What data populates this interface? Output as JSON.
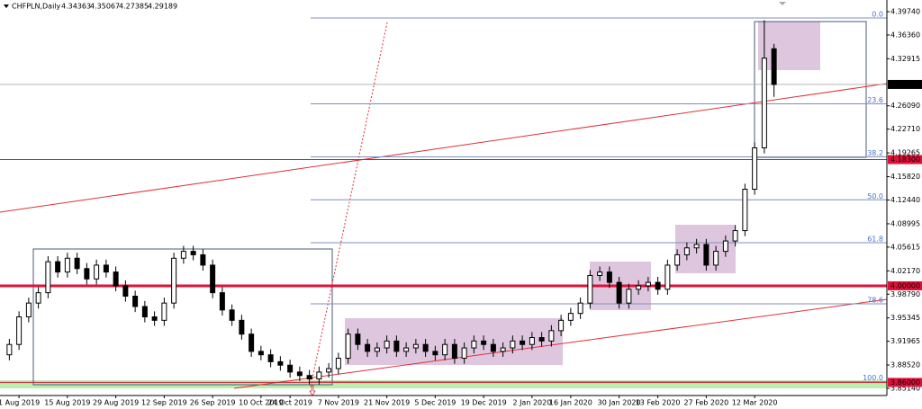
{
  "chart_data": {
    "type": "candlestick",
    "symbol": "CHFPLN,Daily",
    "categories": [
      null,
      "1 Aug 2019",
      null,
      null,
      null,
      null,
      "15 Aug 2019",
      null,
      null,
      null,
      null,
      "29 Aug 2019",
      null,
      null,
      null,
      null,
      "12 Sep 2019",
      null,
      null,
      null,
      null,
      "26 Sep 2019",
      null,
      null,
      null,
      null,
      "10 Oct 2019",
      null,
      null,
      "24 Oct 2019",
      null,
      null,
      null,
      null,
      "7 Nov 2019",
      null,
      null,
      null,
      null,
      "21 Nov 2019",
      null,
      null,
      null,
      null,
      "5 Dec 2019",
      null,
      null,
      null,
      null,
      "19 Dec 2019",
      null,
      null,
      null,
      null,
      "2 Jan 2020",
      null,
      null,
      null,
      "16 Jan 2020",
      null,
      null,
      null,
      null,
      "30 Jan 2020",
      null,
      null,
      null,
      "13 Feb 2020",
      null,
      null,
      null,
      null,
      "27 Feb 2020",
      null,
      null,
      null,
      null,
      "12 Mar 2020",
      null,
      null
    ],
    "open": [
      3.9,
      3.915,
      3.955,
      3.975,
      3.99,
      4.035,
      4.02,
      4.04,
      4.025,
      4.01,
      4.03,
      4.02,
      4.0,
      3.985,
      3.97,
      3.955,
      3.95,
      3.975,
      4.04,
      4.05,
      4.045,
      4.03,
      3.99,
      3.965,
      3.95,
      3.93,
      3.905,
      3.9,
      3.89,
      3.885,
      3.875,
      3.87,
      3.865,
      3.875,
      3.88,
      3.895,
      3.93,
      3.915,
      3.905,
      3.91,
      3.92,
      3.905,
      3.91,
      3.915,
      3.905,
      3.9,
      3.915,
      3.895,
      3.91,
      3.92,
      3.915,
      3.905,
      3.91,
      3.92,
      3.915,
      3.925,
      3.92,
      3.935,
      3.95,
      3.96,
      3.975,
      4.015,
      4.02,
      4.005,
      3.975,
      3.995,
      4.0,
      4.005,
      3.995,
      4.03,
      4.045,
      4.055,
      4.06,
      4.03,
      4.05,
      4.065,
      4.08,
      4.14,
      4.2,
      4.34363
    ],
    "high": [
      3.923,
      3.963,
      3.983,
      3.998,
      4.043,
      4.043,
      4.048,
      4.048,
      4.033,
      4.038,
      4.038,
      4.028,
      4.008,
      3.993,
      3.978,
      3.963,
      3.983,
      4.048,
      4.058,
      4.058,
      4.053,
      4.038,
      3.998,
      3.973,
      3.958,
      3.938,
      3.913,
      3.908,
      3.898,
      3.893,
      3.883,
      3.878,
      3.883,
      3.888,
      3.903,
      3.938,
      3.938,
      3.923,
      3.918,
      3.928,
      3.928,
      3.918,
      3.923,
      3.923,
      3.913,
      3.923,
      3.923,
      3.918,
      3.928,
      3.928,
      3.923,
      3.918,
      3.928,
      3.928,
      3.933,
      3.933,
      3.943,
      3.958,
      3.968,
      3.983,
      4.023,
      4.028,
      4.028,
      4.013,
      4.003,
      4.008,
      4.013,
      4.013,
      4.038,
      4.053,
      4.063,
      4.068,
      4.068,
      4.058,
      4.073,
      4.088,
      4.148,
      4.208,
      4.385,
      4.35067
    ],
    "low": [
      3.892,
      3.907,
      3.947,
      3.967,
      3.982,
      4.012,
      4.012,
      4.017,
      4.002,
      4.002,
      4.012,
      3.992,
      3.977,
      3.962,
      3.947,
      3.942,
      3.942,
      3.967,
      4.032,
      4.037,
      4.022,
      3.982,
      3.957,
      3.942,
      3.922,
      3.897,
      3.892,
      3.882,
      3.877,
      3.867,
      3.862,
      3.857,
      3.857,
      3.867,
      3.872,
      3.887,
      3.907,
      3.897,
      3.897,
      3.902,
      3.897,
      3.897,
      3.902,
      3.897,
      3.892,
      3.892,
      3.887,
      3.887,
      3.902,
      3.907,
      3.897,
      3.897,
      3.902,
      3.907,
      3.907,
      3.912,
      3.912,
      3.927,
      3.942,
      3.952,
      3.967,
      4.007,
      3.997,
      3.967,
      3.967,
      3.987,
      3.992,
      3.987,
      3.987,
      4.022,
      4.037,
      4.047,
      4.022,
      4.022,
      4.042,
      4.057,
      4.072,
      4.132,
      4.192,
      4.27385
    ],
    "close": [
      3.915,
      3.955,
      3.975,
      3.99,
      4.035,
      4.02,
      4.04,
      4.025,
      4.01,
      4.03,
      4.02,
      4.0,
      3.985,
      3.97,
      3.955,
      3.95,
      3.975,
      4.04,
      4.05,
      4.045,
      4.03,
      3.99,
      3.965,
      3.95,
      3.93,
      3.905,
      3.9,
      3.89,
      3.885,
      3.875,
      3.87,
      3.865,
      3.875,
      3.88,
      3.895,
      3.93,
      3.915,
      3.905,
      3.91,
      3.92,
      3.905,
      3.91,
      3.915,
      3.905,
      3.9,
      3.915,
      3.895,
      3.91,
      3.92,
      3.915,
      3.905,
      3.91,
      3.92,
      3.915,
      3.925,
      3.92,
      3.935,
      3.95,
      3.96,
      3.975,
      4.015,
      4.02,
      4.005,
      3.975,
      3.995,
      4.0,
      4.005,
      3.995,
      4.03,
      4.045,
      4.055,
      4.06,
      4.03,
      4.05,
      4.065,
      4.08,
      4.14,
      4.2,
      4.33,
      4.29189
    ],
    "up_color": "#ffffff",
    "down_color": "#000000",
    "ylim": [
      3.841,
      4.4143
    ],
    "yticks": [
      {
        "value": 4.3974,
        "label": "4.39740"
      },
      {
        "value": 4.3636,
        "label": "4.36360"
      },
      4.32915,
      {
        "value": 4.2609,
        "label": "4.26090"
      },
      {
        "value": 4.2271,
        "label": "4.22710"
      },
      4.19265,
      {
        "value": 4.1582,
        "label": "4.15820"
      },
      {
        "value": 4.1244,
        "label": "4.12440"
      },
      4.08995,
      4.05615,
      {
        "value": 4.0217,
        "label": "4.02170"
      },
      {
        "value": 3.9879,
        "label": "3.98790"
      },
      3.95345,
      3.91965,
      {
        "value": 3.8852,
        "label": "3.88520"
      },
      {
        "value": 3.8514,
        "label": "3.85140"
      }
    ],
    "grid": false,
    "price_lines": [
      {
        "value": 4.183,
        "label": "4.18300",
        "color": "#e0103a",
        "width": 1
      },
      {
        "value": 4,
        "label": "4.00000",
        "color": "#e0103a",
        "width": 3
      },
      {
        "value": 3.86,
        "label": "3.86000",
        "color": "#e0103a",
        "width": 1
      }
    ],
    "fibonacci": {
      "high": 4.3883,
      "low": 3.861,
      "color": "#7f8fb8",
      "levels": [
        {
          "value": 0,
          "label": "0.0"
        },
        {
          "value": 23.6,
          "label": "23.6"
        },
        {
          "value": 38.2,
          "label": "38.2"
        },
        {
          "value": 50,
          "label": "50.0"
        },
        {
          "value": 61.8,
          "label": "61.8"
        },
        {
          "value": 78.6,
          "label": "78.6"
        },
        {
          "value": 100,
          "label": "100.0"
        }
      ]
    }
  }
}
